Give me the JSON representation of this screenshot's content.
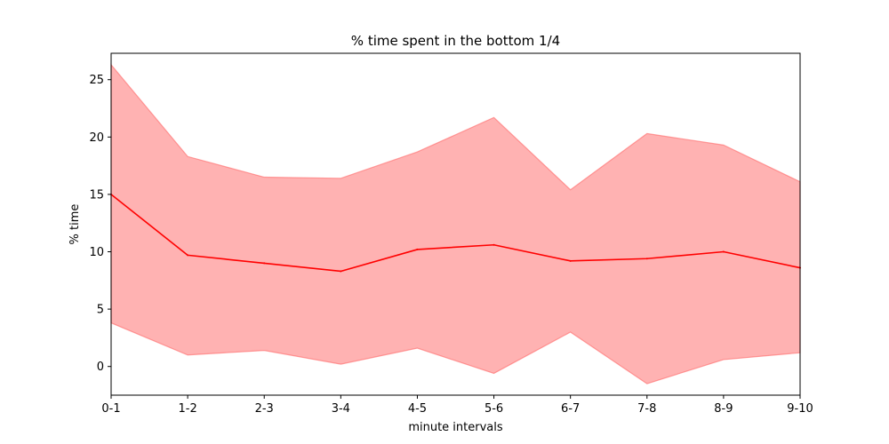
{
  "chart_data": {
    "type": "line",
    "title": "% time spent in the bottom 1/4",
    "xlabel": "minute intervals",
    "ylabel": "% time",
    "categories": [
      "0-1",
      "1-2",
      "2-3",
      "3-4",
      "4-5",
      "5-6",
      "6-7",
      "7-8",
      "8-9",
      "9-10"
    ],
    "ylim": [
      -2.5,
      27.3
    ],
    "yticks": [
      0,
      5,
      10,
      15,
      20,
      25
    ],
    "grid": false,
    "series": [
      {
        "values": [
          15.0,
          9.7,
          9.0,
          8.3,
          10.2,
          10.6,
          9.2,
          9.4,
          10.0,
          8.6
        ],
        "band_upper": [
          26.3,
          18.3,
          16.5,
          16.4,
          18.7,
          21.7,
          15.4,
          20.3,
          19.3,
          16.1
        ],
        "band_lower": [
          3.8,
          1.0,
          1.4,
          0.2,
          1.6,
          -0.6,
          3.0,
          -1.5,
          0.6,
          1.2
        ],
        "color": "#ff0000",
        "band_color": "#ff6666"
      }
    ]
  }
}
